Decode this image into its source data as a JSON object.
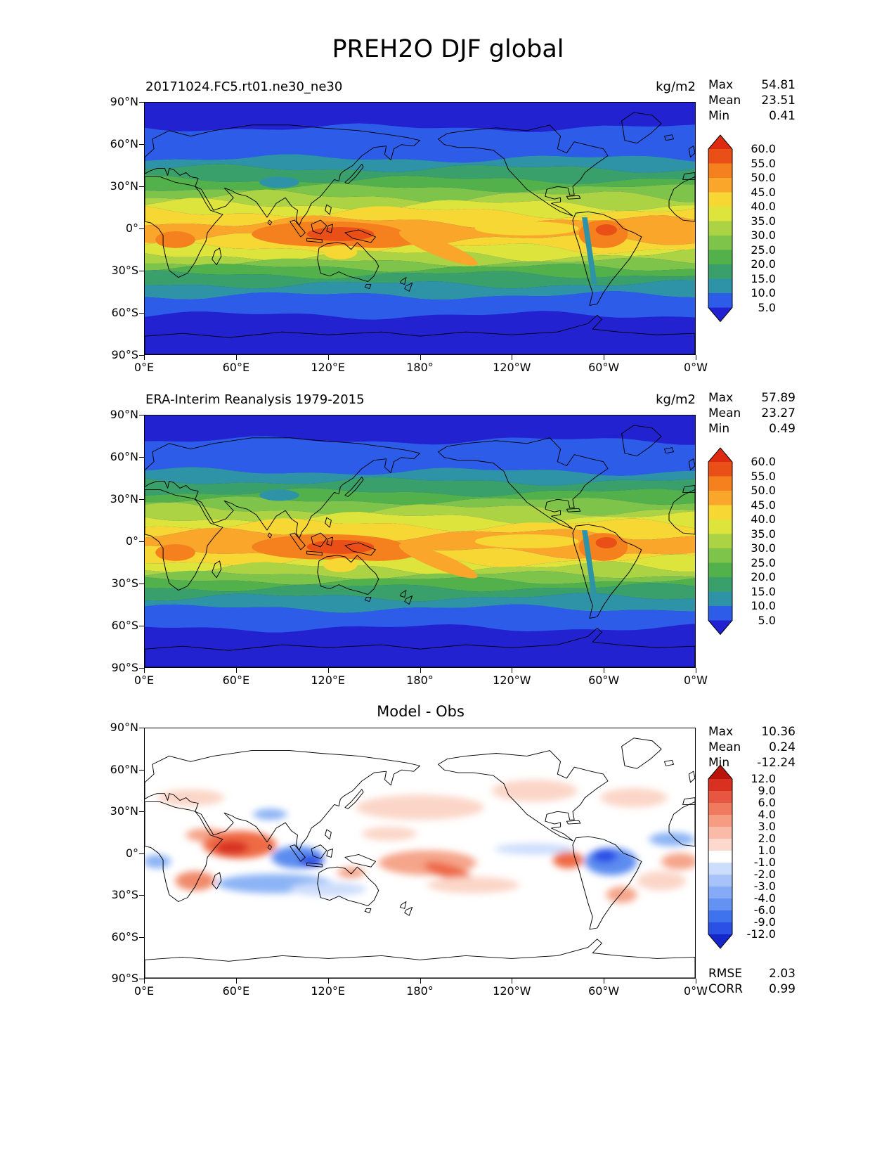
{
  "page": {
    "title": "PREH2O DJF global"
  },
  "panels": [
    {
      "id": "model",
      "title": "20171024.FC5.rt01.ne30_ne30",
      "units": "kg/m2",
      "stats": {
        "max_label": "Max",
        "max": "54.81",
        "mean_label": "Mean",
        "mean": "23.51",
        "min_label": "Min",
        "min": "0.41"
      },
      "colorbar_labels": [
        "60.0",
        "55.0",
        "50.0",
        "45.0",
        "40.0",
        "35.0",
        "30.0",
        "25.0",
        "20.0",
        "15.0",
        "10.0",
        "5.0"
      ],
      "yticks": [
        "90°N",
        "60°N",
        "30°N",
        "0°",
        "30°S",
        "60°S",
        "90°S"
      ],
      "xticks": [
        "0°E",
        "60°E",
        "120°E",
        "180°",
        "120°W",
        "60°W",
        "0°W"
      ]
    },
    {
      "id": "obs",
      "title": "ERA-Interim Reanalysis 1979-2015",
      "units": "kg/m2",
      "stats": {
        "max_label": "Max",
        "max": "57.89",
        "mean_label": "Mean",
        "mean": "23.27",
        "min_label": "Min",
        "min": "0.49"
      },
      "colorbar_labels": [
        "60.0",
        "55.0",
        "50.0",
        "45.0",
        "40.0",
        "35.0",
        "30.0",
        "25.0",
        "20.0",
        "15.0",
        "10.0",
        "5.0"
      ],
      "yticks": [
        "90°N",
        "60°N",
        "30°N",
        "0°",
        "30°S",
        "60°S",
        "90°S"
      ],
      "xticks": [
        "0°E",
        "60°E",
        "120°E",
        "180°",
        "120°W",
        "60°W",
        "0°W"
      ]
    },
    {
      "id": "diff",
      "title": "Model - Obs",
      "stats": {
        "max_label": "Max",
        "max": "10.36",
        "mean_label": "Mean",
        "mean": "0.24",
        "min_label": "Min",
        "min": "-12.24"
      },
      "extra": {
        "rmse_label": "RMSE",
        "rmse": "2.03",
        "corr_label": "CORR",
        "corr": "0.99"
      },
      "colorbar_labels": [
        "12.0",
        "9.0",
        "6.0",
        "4.0",
        "3.0",
        "2.0",
        "1.0",
        "-1.0",
        "-2.0",
        "-3.0",
        "-4.0",
        "-6.0",
        "-9.0",
        "-12.0"
      ],
      "yticks": [
        "90°N",
        "60°N",
        "30°N",
        "0°",
        "30°S",
        "60°S",
        "90°S"
      ],
      "xticks": [
        "0°E",
        "60°E",
        "120°E",
        "180°",
        "120°W",
        "60°W",
        "0°W"
      ]
    }
  ],
  "chart_data": [
    {
      "type": "heatmap",
      "subtype": "filled_contour_global_map",
      "title": "20171024.FC5.rt01.ne30_ne30",
      "variable": "PREH2O",
      "season": "DJF",
      "region": "global",
      "units": "kg/m2",
      "stats": {
        "max": 54.81,
        "mean": 23.51,
        "min": 0.41
      },
      "contour_levels": [
        5.0,
        10.0,
        15.0,
        20.0,
        25.0,
        30.0,
        35.0,
        40.0,
        45.0,
        50.0,
        55.0,
        60.0
      ],
      "colorbar_extend": "both",
      "palette": [
        "#2222d0",
        "#2d5ce8",
        "#2f93a8",
        "#3aa06b",
        "#52b14b",
        "#7ec44a",
        "#abd343",
        "#dde43c",
        "#f6d733",
        "#f9a62b",
        "#f5811e",
        "#ea4f17",
        "#dd2a10"
      ],
      "lon_ticks_deg": [
        0,
        60,
        120,
        180,
        240,
        300,
        360
      ],
      "lat_ticks_deg": [
        90,
        60,
        30,
        0,
        -30,
        -60,
        -90
      ],
      "grid": false,
      "legend_position": "right"
    },
    {
      "type": "heatmap",
      "subtype": "filled_contour_global_map",
      "title": "ERA-Interim Reanalysis 1979-2015",
      "variable": "PREH2O",
      "season": "DJF",
      "region": "global",
      "units": "kg/m2",
      "stats": {
        "max": 57.89,
        "mean": 23.27,
        "min": 0.49
      },
      "contour_levels": [
        5.0,
        10.0,
        15.0,
        20.0,
        25.0,
        30.0,
        35.0,
        40.0,
        45.0,
        50.0,
        55.0,
        60.0
      ],
      "colorbar_extend": "both",
      "palette": [
        "#2222d0",
        "#2d5ce8",
        "#2f93a8",
        "#3aa06b",
        "#52b14b",
        "#7ec44a",
        "#abd343",
        "#dde43c",
        "#f6d733",
        "#f9a62b",
        "#f5811e",
        "#ea4f17",
        "#dd2a10"
      ],
      "lon_ticks_deg": [
        0,
        60,
        120,
        180,
        240,
        300,
        360
      ],
      "lat_ticks_deg": [
        90,
        60,
        30,
        0,
        -30,
        -60,
        -90
      ],
      "grid": false,
      "legend_position": "right"
    },
    {
      "type": "heatmap",
      "subtype": "filled_contour_global_map_difference",
      "title": "Model - Obs",
      "variable": "PREH2O",
      "season": "DJF",
      "region": "global",
      "units": "kg/m2",
      "stats": {
        "max": 10.36,
        "mean": 0.24,
        "min": -12.24
      },
      "rmse": 2.03,
      "corr": 0.99,
      "contour_levels": [
        -12.0,
        -9.0,
        -6.0,
        -4.0,
        -3.0,
        -2.0,
        -1.0,
        1.0,
        2.0,
        3.0,
        4.0,
        6.0,
        9.0,
        12.0
      ],
      "colorbar_extend": "both",
      "palette": [
        "#1426c8",
        "#2b50e6",
        "#3f73ee",
        "#6392f2",
        "#86abf6",
        "#a7c3f9",
        "#cdddfc",
        "#ffffff",
        "#fcd9cc",
        "#f9bba7",
        "#f59c83",
        "#ef7a5e",
        "#e65640",
        "#d93121",
        "#b81409"
      ],
      "lon_ticks_deg": [
        0,
        60,
        120,
        180,
        240,
        300,
        360
      ],
      "lat_ticks_deg": [
        90,
        60,
        30,
        0,
        -30,
        -60,
        -90
      ],
      "grid": false,
      "legend_position": "right"
    }
  ]
}
